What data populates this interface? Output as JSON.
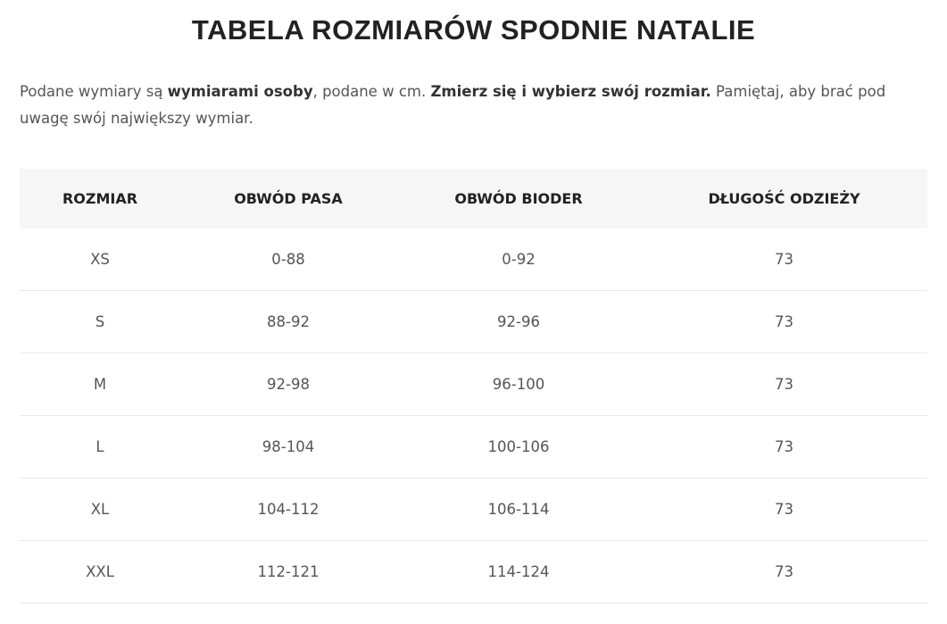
{
  "title": "TABELA ROZMIARÓW SPODNIE NATALIE",
  "intro": {
    "p1": "Podane wymiary są ",
    "b1": "wymiarami osoby",
    "p2": ", podane w cm. ",
    "b2": "Zmierz się i wybierz swój rozmiar.",
    "p3": " Pamiętaj, aby brać pod uwagę swój największy wymiar."
  },
  "table": {
    "headers": [
      "ROZMIAR",
      "OBWÓD PASA",
      "OBWÓD BIODER",
      "DŁUGOŚĆ ODZIEŻY"
    ],
    "rows": [
      [
        "XS",
        "0-88",
        "0-92",
        "73"
      ],
      [
        "S",
        "88-92",
        "92-96",
        "73"
      ],
      [
        "M",
        "92-98",
        "96-100",
        "73"
      ],
      [
        "L",
        "98-104",
        "100-106",
        "73"
      ],
      [
        "XL",
        "104-112",
        "106-114",
        "73"
      ],
      [
        "XXL",
        "112-121",
        "114-124",
        "73"
      ]
    ]
  }
}
